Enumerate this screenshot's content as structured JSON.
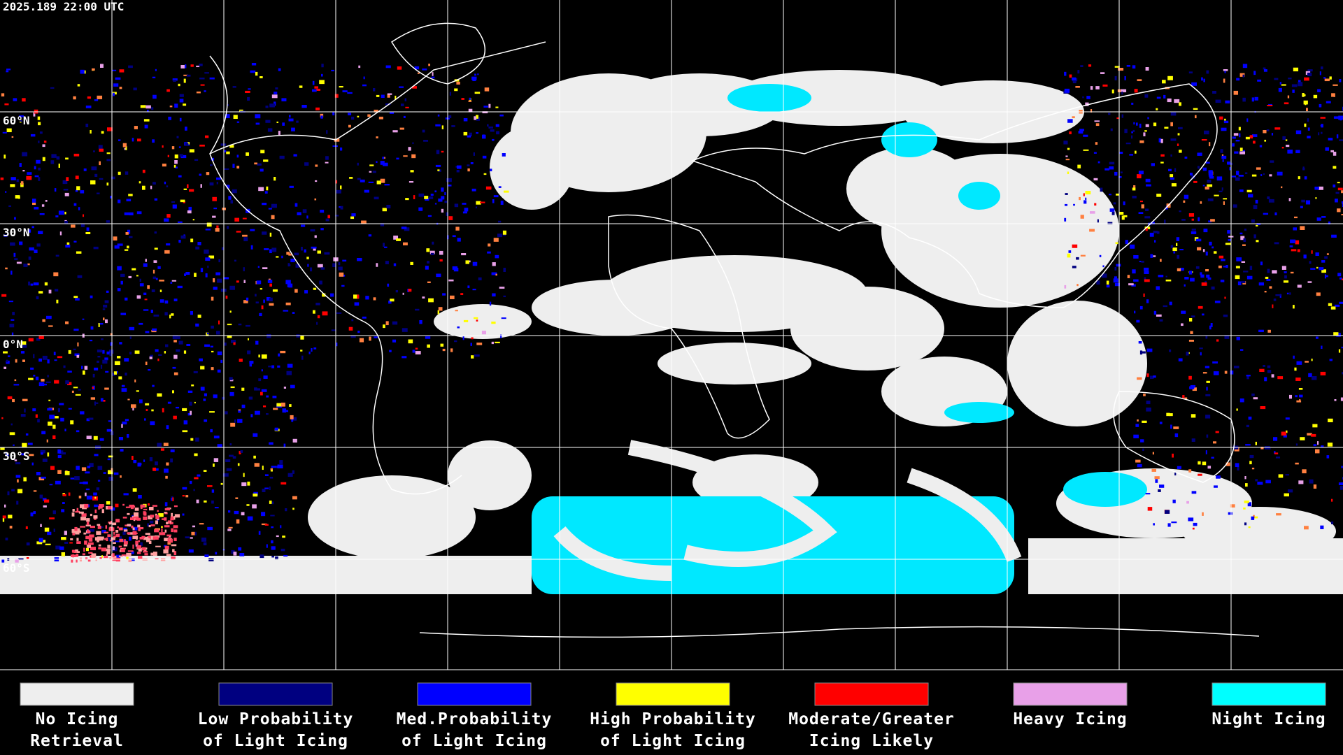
{
  "header": {
    "timestamp": "2025.189 22:00 UTC"
  },
  "map": {
    "lat_labels": [
      "60°N",
      "30°N",
      "0°N",
      "30°S",
      "60°S"
    ]
  },
  "legend": [
    {
      "label": [
        "No Icing",
        "Retrieval"
      ],
      "color": "#eeeeee"
    },
    {
      "label": [
        "Low Probability",
        "of Light Icing"
      ],
      "color": "#000080"
    },
    {
      "label": [
        "Med.Probability",
        "of Light Icing"
      ],
      "color": "#0000ff"
    },
    {
      "label": [
        "High Probability",
        "of Light Icing"
      ],
      "color": "#ffff00"
    },
    {
      "label": [
        "Moderate/Greater",
        "Icing Likely"
      ],
      "color": "#ff0000"
    },
    {
      "label": [
        "Heavy Icing",
        ""
      ],
      "color": "#e8a0e8"
    },
    {
      "label": [
        "Night Icing",
        ""
      ],
      "color": "#00ffff"
    }
  ]
}
